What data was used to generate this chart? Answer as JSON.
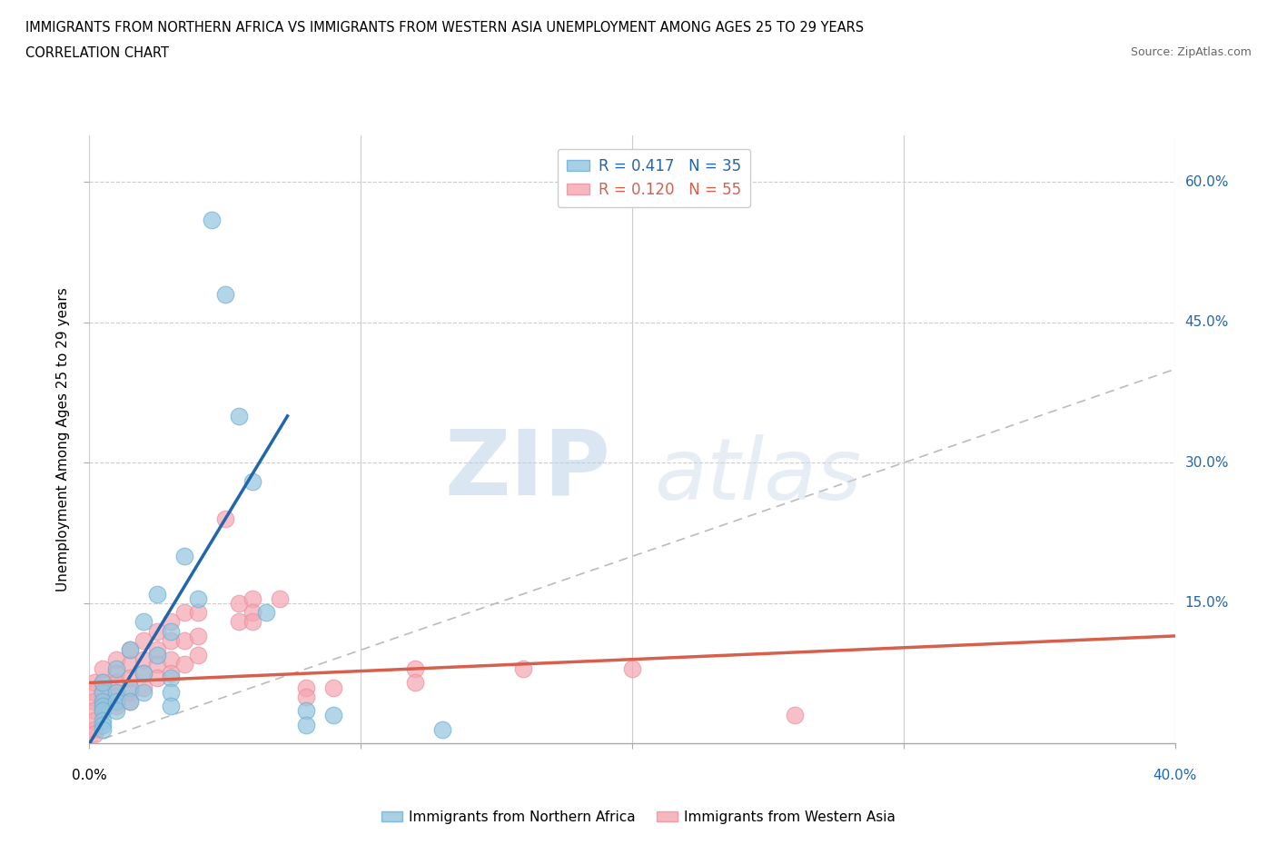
{
  "title_line1": "IMMIGRANTS FROM NORTHERN AFRICA VS IMMIGRANTS FROM WESTERN ASIA UNEMPLOYMENT AMONG AGES 25 TO 29 YEARS",
  "title_line2": "CORRELATION CHART",
  "source": "Source: ZipAtlas.com",
  "ylabel": "Unemployment Among Ages 25 to 29 years",
  "ylabel_right_ticks": [
    "60.0%",
    "45.0%",
    "30.0%",
    "15.0%"
  ],
  "ylabel_right_vals": [
    0.6,
    0.45,
    0.3,
    0.15
  ],
  "xlim": [
    0.0,
    0.4
  ],
  "ylim": [
    0.0,
    0.65
  ],
  "R_blue": 0.417,
  "N_blue": 35,
  "R_pink": 0.12,
  "N_pink": 55,
  "legend_label_blue": "Immigrants from Northern Africa",
  "legend_label_pink": "Immigrants from Western Asia",
  "blue_color": "#92c5de",
  "pink_color": "#f4a5b0",
  "blue_scatter_edge": "#6baed6",
  "pink_scatter_edge": "#e88fa0",
  "blue_line_color": "#2166ac",
  "pink_line_color": "#d6604d",
  "diagonal_color": "#bbbbbb",
  "watermark_zip": "ZIP",
  "watermark_atlas": "atlas",
  "blue_scatter": [
    [
      0.005,
      0.055
    ],
    [
      0.005,
      0.045
    ],
    [
      0.005,
      0.065
    ],
    [
      0.005,
      0.04
    ],
    [
      0.005,
      0.035
    ],
    [
      0.005,
      0.025
    ],
    [
      0.005,
      0.02
    ],
    [
      0.005,
      0.015
    ],
    [
      0.01,
      0.08
    ],
    [
      0.01,
      0.055
    ],
    [
      0.01,
      0.045
    ],
    [
      0.01,
      0.035
    ],
    [
      0.015,
      0.1
    ],
    [
      0.015,
      0.06
    ],
    [
      0.015,
      0.045
    ],
    [
      0.02,
      0.13
    ],
    [
      0.02,
      0.075
    ],
    [
      0.02,
      0.055
    ],
    [
      0.025,
      0.16
    ],
    [
      0.025,
      0.095
    ],
    [
      0.03,
      0.12
    ],
    [
      0.03,
      0.07
    ],
    [
      0.03,
      0.055
    ],
    [
      0.03,
      0.04
    ],
    [
      0.035,
      0.2
    ],
    [
      0.04,
      0.155
    ],
    [
      0.045,
      0.56
    ],
    [
      0.05,
      0.48
    ],
    [
      0.055,
      0.35
    ],
    [
      0.06,
      0.28
    ],
    [
      0.065,
      0.14
    ],
    [
      0.08,
      0.035
    ],
    [
      0.08,
      0.02
    ],
    [
      0.09,
      0.03
    ],
    [
      0.13,
      0.015
    ]
  ],
  "pink_scatter": [
    [
      0.002,
      0.065
    ],
    [
      0.002,
      0.055
    ],
    [
      0.002,
      0.045
    ],
    [
      0.002,
      0.035
    ],
    [
      0.002,
      0.025
    ],
    [
      0.002,
      0.015
    ],
    [
      0.002,
      0.01
    ],
    [
      0.005,
      0.08
    ],
    [
      0.005,
      0.065
    ],
    [
      0.005,
      0.055
    ],
    [
      0.005,
      0.045
    ],
    [
      0.005,
      0.035
    ],
    [
      0.01,
      0.09
    ],
    [
      0.01,
      0.075
    ],
    [
      0.01,
      0.065
    ],
    [
      0.01,
      0.055
    ],
    [
      0.01,
      0.04
    ],
    [
      0.015,
      0.1
    ],
    [
      0.015,
      0.085
    ],
    [
      0.015,
      0.07
    ],
    [
      0.015,
      0.055
    ],
    [
      0.015,
      0.045
    ],
    [
      0.02,
      0.11
    ],
    [
      0.02,
      0.09
    ],
    [
      0.02,
      0.075
    ],
    [
      0.02,
      0.06
    ],
    [
      0.025,
      0.12
    ],
    [
      0.025,
      0.1
    ],
    [
      0.025,
      0.085
    ],
    [
      0.025,
      0.07
    ],
    [
      0.03,
      0.13
    ],
    [
      0.03,
      0.11
    ],
    [
      0.03,
      0.09
    ],
    [
      0.03,
      0.075
    ],
    [
      0.035,
      0.14
    ],
    [
      0.035,
      0.11
    ],
    [
      0.035,
      0.085
    ],
    [
      0.04,
      0.14
    ],
    [
      0.04,
      0.115
    ],
    [
      0.04,
      0.095
    ],
    [
      0.05,
      0.24
    ],
    [
      0.055,
      0.15
    ],
    [
      0.055,
      0.13
    ],
    [
      0.06,
      0.155
    ],
    [
      0.06,
      0.14
    ],
    [
      0.06,
      0.13
    ],
    [
      0.07,
      0.155
    ],
    [
      0.08,
      0.06
    ],
    [
      0.08,
      0.05
    ],
    [
      0.09,
      0.06
    ],
    [
      0.12,
      0.08
    ],
    [
      0.12,
      0.065
    ],
    [
      0.16,
      0.08
    ],
    [
      0.2,
      0.08
    ],
    [
      0.26,
      0.03
    ]
  ],
  "blue_line_x": [
    0.0,
    0.073
  ],
  "blue_line_y": [
    0.0,
    0.35
  ],
  "pink_line_x": [
    0.0,
    0.4
  ],
  "pink_line_y": [
    0.065,
    0.115
  ]
}
